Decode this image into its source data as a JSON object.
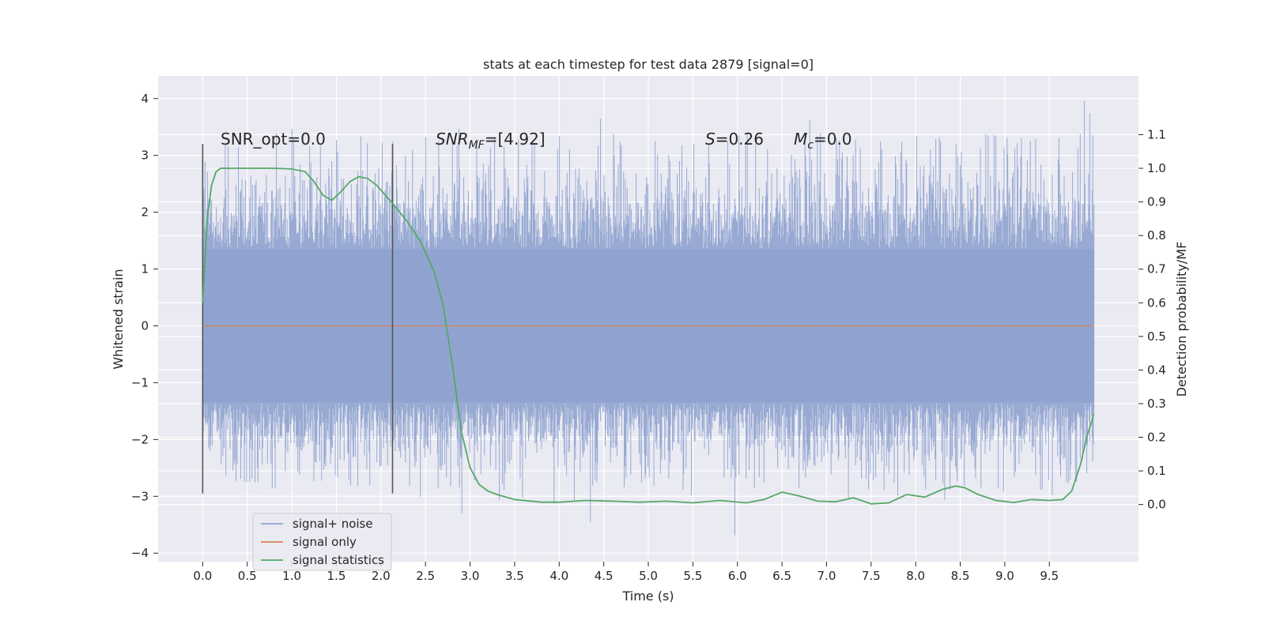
{
  "chart_data": {
    "type": "line",
    "title": "stats at each timestep for test data 2879 [signal=0]",
    "xlabel": "Time (s)",
    "ylabel": "Whitened strain",
    "y2label": "Detection probability/MF",
    "xlim": [
      -0.5,
      10.5
    ],
    "ylim": [
      -4.15,
      4.4
    ],
    "y2lim": [
      -0.17,
      1.275
    ],
    "x_ticks": [
      "0.0",
      "0.5",
      "1.0",
      "1.5",
      "2.0",
      "2.5",
      "3.0",
      "3.5",
      "4.0",
      "4.5",
      "5.0",
      "5.5",
      "6.0",
      "6.5",
      "7.0",
      "7.5",
      "8.0",
      "8.5",
      "9.0",
      "9.5"
    ],
    "y_ticks": [
      "4",
      "3",
      "2",
      "1",
      "0",
      "−1",
      "−2",
      "−3",
      "−4"
    ],
    "y2_ticks": [
      "1.1",
      "1.0",
      "0.9",
      "0.8",
      "0.7",
      "0.6",
      "0.5",
      "0.4",
      "0.3",
      "0.2",
      "0.1",
      "0.0"
    ],
    "grid": true,
    "legend_position": "lower-left",
    "annotations": {
      "snr_opt": "SNR_opt=0.0",
      "snr_mf_main": "SNR",
      "snr_mf_sub": "MF",
      "snr_mf_rest": "=[4.92]",
      "s_var": "S",
      "s_rest": "=0.26",
      "mc_var": "M",
      "mc_sub": "c",
      "mc_rest": "=0.0"
    },
    "vlines": [
      0.0,
      2.13
    ],
    "series": [
      {
        "name": "signal+ noise",
        "color": "#8fa3cf",
        "kind": "noise",
        "x_range": [
          0.0,
          10.0
        ],
        "core_band": [
          -1.35,
          1.35
        ],
        "peak_envelope": [
          -2.9,
          3.4
        ],
        "extreme_min": -3.8,
        "extreme_max": 4.05
      },
      {
        "name": "signal only",
        "color": "#dd8452",
        "x": [
          0.0,
          10.0
        ],
        "y": [
          0.0,
          0.0
        ]
      },
      {
        "name": "signal statistics",
        "color": "#55a868",
        "axis": "right",
        "x": [
          0.0,
          0.05,
          0.1,
          0.15,
          0.2,
          0.3,
          0.5,
          0.8,
          1.0,
          1.15,
          1.25,
          1.35,
          1.45,
          1.55,
          1.65,
          1.75,
          1.85,
          1.95,
          2.05,
          2.15,
          2.3,
          2.45,
          2.6,
          2.7,
          2.8,
          2.9,
          3.0,
          3.1,
          3.2,
          3.3,
          3.5,
          3.8,
          4.0,
          4.3,
          4.6,
          4.9,
          5.2,
          5.5,
          5.8,
          6.1,
          6.3,
          6.5,
          6.7,
          6.9,
          7.1,
          7.3,
          7.5,
          7.7,
          7.9,
          8.1,
          8.3,
          8.45,
          8.55,
          8.7,
          8.9,
          9.1,
          9.3,
          9.5,
          9.65,
          9.75,
          9.85,
          9.92,
          10.0
        ],
        "y": [
          0.6,
          0.85,
          0.95,
          0.99,
          1.0,
          1.0,
          1.0,
          1.0,
          0.998,
          0.99,
          0.96,
          0.92,
          0.905,
          0.93,
          0.96,
          0.975,
          0.97,
          0.95,
          0.92,
          0.89,
          0.84,
          0.78,
          0.69,
          0.59,
          0.42,
          0.22,
          0.11,
          0.06,
          0.04,
          0.03,
          0.015,
          0.007,
          0.007,
          0.012,
          0.01,
          0.007,
          0.01,
          0.005,
          0.012,
          0.005,
          0.015,
          0.037,
          0.025,
          0.01,
          0.008,
          0.02,
          0.002,
          0.005,
          0.03,
          0.022,
          0.045,
          0.055,
          0.05,
          0.03,
          0.012,
          0.006,
          0.015,
          0.012,
          0.015,
          0.04,
          0.12,
          0.2,
          0.27
        ]
      }
    ]
  }
}
